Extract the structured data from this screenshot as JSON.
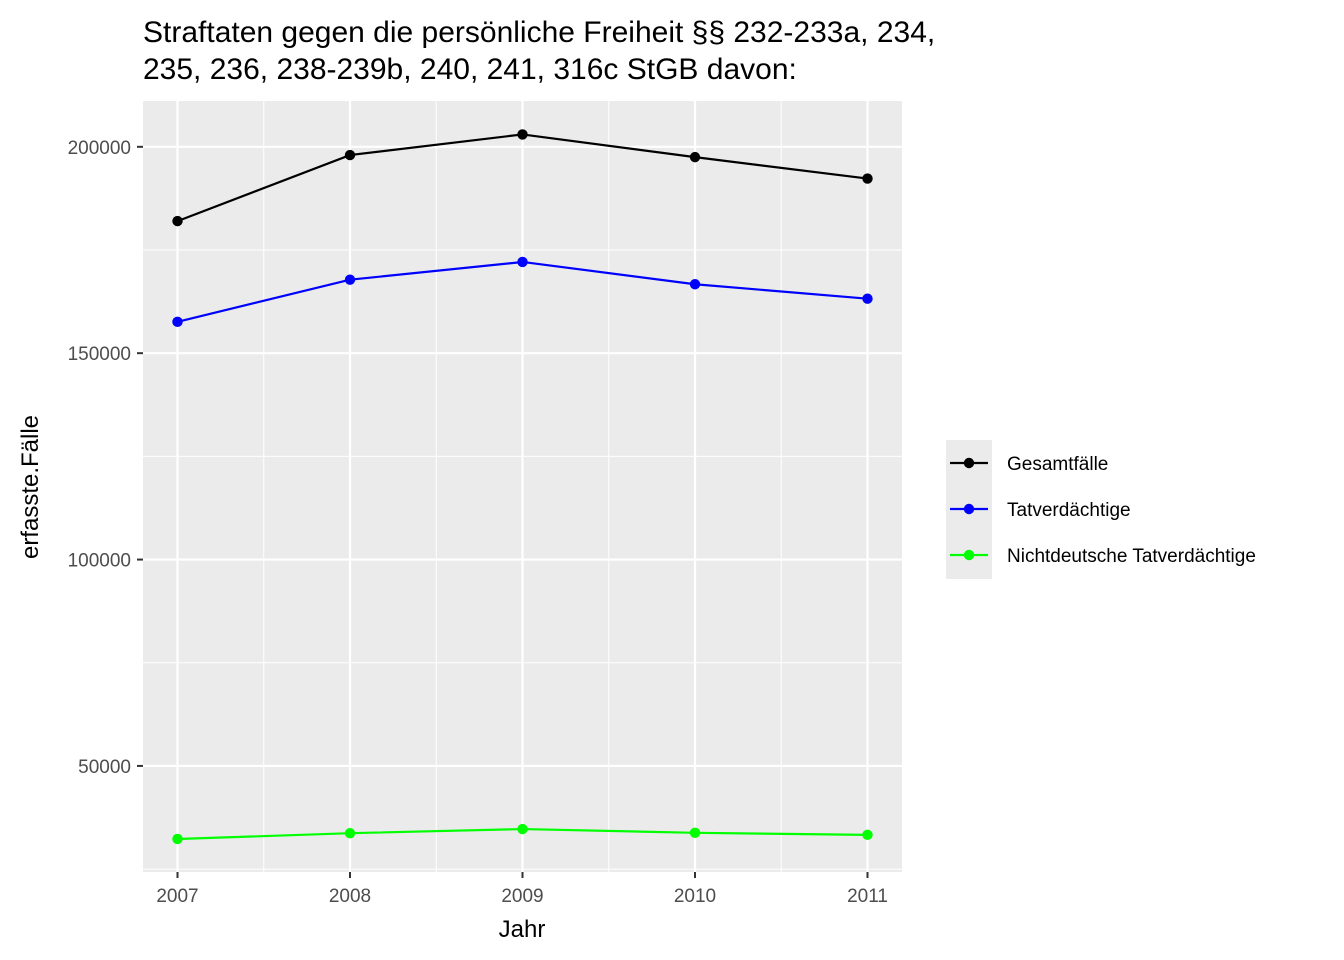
{
  "chart_data": {
    "type": "line",
    "title_lines": [
      "Straftaten gegen die persönliche Freiheit §§ 232-233a, 234,",
      "235, 236, 238-239b, 240, 241, 316c StGB davon:"
    ],
    "xlabel": "Jahr",
    "ylabel": "erfasste.Fälle",
    "x": [
      2007,
      2008,
      2009,
      2010,
      2011
    ],
    "x_tick_labels": [
      "2007",
      "2008",
      "2009",
      "2010",
      "2011"
    ],
    "xlim": [
      2006.8,
      2011.2
    ],
    "y_ticks": [
      50000,
      100000,
      150000,
      200000
    ],
    "y_tick_labels": [
      "50000",
      "100000",
      "150000",
      "200000"
    ],
    "ylim": [
      24300,
      211100
    ],
    "grid": true,
    "legend_position": "right",
    "series": [
      {
        "name": "Gesamtfälle",
        "color": "#000000",
        "values": [
          182000,
          198000,
          203000,
          197500,
          192300
        ]
      },
      {
        "name": "Tatverdächtige",
        "color": "#0000ff",
        "values": [
          157600,
          167800,
          172100,
          166700,
          163200
        ]
      },
      {
        "name": "Nichtdeutsche Tatverdächtige",
        "color": "#00ff00",
        "values": [
          32300,
          33700,
          34700,
          33800,
          33300
        ]
      }
    ]
  }
}
